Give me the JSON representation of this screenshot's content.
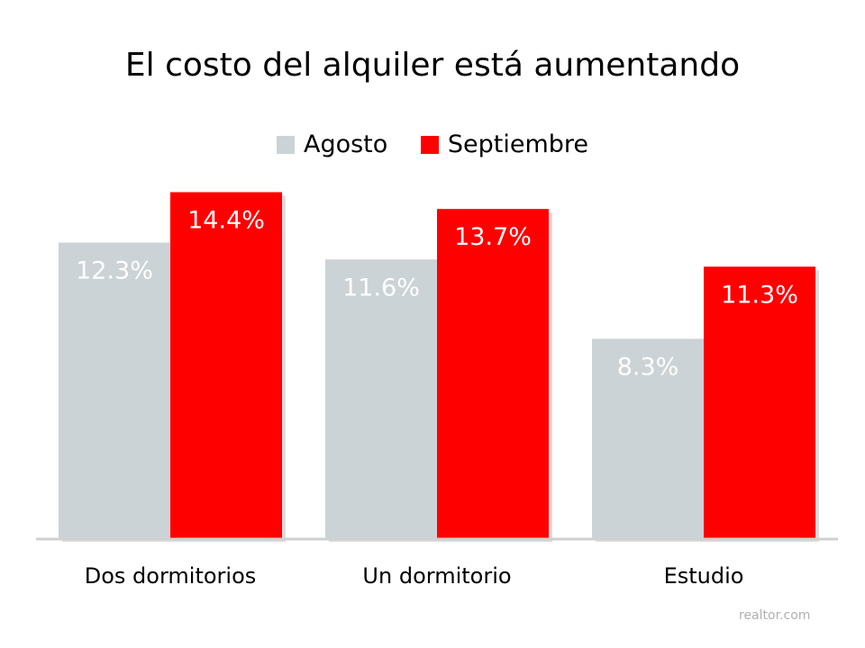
{
  "credit": "realtor.com",
  "chart_data": {
    "type": "bar",
    "title": "El costo del alquiler está aumentando",
    "categories": [
      "Dos dormitorios",
      "Un dormitorio",
      "Estudio"
    ],
    "series": [
      {
        "name": "Agosto",
        "values": [
          12.3,
          11.6,
          8.3
        ],
        "labels": [
          "12.3%",
          "11.6%",
          "8.3%"
        ],
        "color": "#cbd3d6"
      },
      {
        "name": "Septiembre",
        "values": [
          14.4,
          13.7,
          11.3
        ],
        "labels": [
          "14.4%",
          "13.7%",
          "11.3%"
        ],
        "color": "#ff0000"
      }
    ],
    "ylim": [
      0,
      15
    ],
    "grid": false,
    "legend": "top-center",
    "xlabel": "",
    "ylabel": ""
  }
}
